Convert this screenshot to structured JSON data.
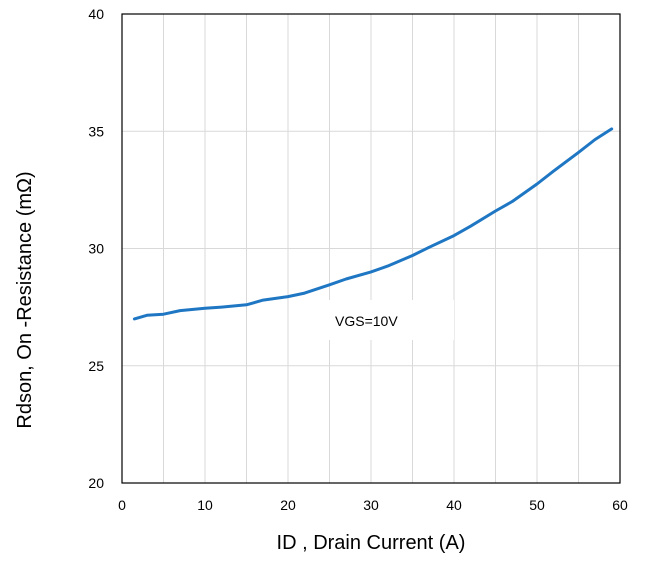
{
  "chart_data": {
    "type": "line",
    "title": "",
    "xlabel": "ID , Drain Current (A)",
    "ylabel": "Rdson, On -Resistance (mΩ)",
    "xlim": [
      0,
      60
    ],
    "ylim": [
      20,
      40
    ],
    "x_ticks": [
      0,
      10,
      20,
      30,
      40,
      50,
      60
    ],
    "y_ticks": [
      20,
      25,
      30,
      35,
      40
    ],
    "grid": true,
    "colors": {
      "series": "#1f77c4",
      "grid": "#d9d9d9"
    },
    "annotation": "VGS=10V",
    "series": [
      {
        "x": [
          1.5,
          3,
          5,
          7,
          10,
          12,
          15,
          17,
          20,
          22,
          25,
          27,
          30,
          32,
          35,
          37,
          40,
          42,
          45,
          47,
          50,
          52,
          55,
          57,
          59
        ],
        "values": [
          27.0,
          27.15,
          27.2,
          27.35,
          27.45,
          27.5,
          27.6,
          27.8,
          27.95,
          28.1,
          28.45,
          28.7,
          29.0,
          29.25,
          29.7,
          30.05,
          30.55,
          30.95,
          31.6,
          32.0,
          32.75,
          33.3,
          34.1,
          34.65,
          35.1
        ]
      }
    ]
  }
}
